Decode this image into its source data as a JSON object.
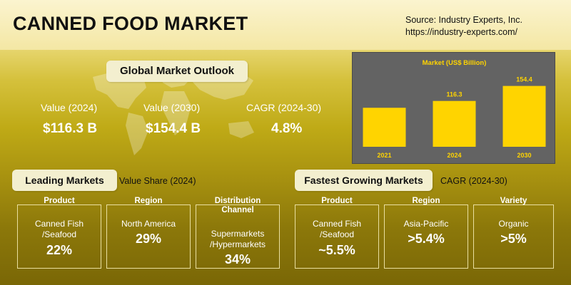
{
  "header": {
    "title": "CANNED FOOD MARKET",
    "source_line1": "Source: Industry Experts, Inc.",
    "source_line2": "https://industry-experts.com/"
  },
  "outlook": {
    "heading": "Global Market Outlook",
    "kpis": [
      {
        "label": "Value (2024)",
        "value": "$116.3 B"
      },
      {
        "label": "Value (2030)",
        "value": "$154.4 B"
      },
      {
        "label": "CAGR (2024-30)",
        "value": "4.8%"
      }
    ]
  },
  "chart_data": {
    "type": "bar",
    "title": "Market (US$ Billion)",
    "categories": [
      "2021",
      "2024",
      "2030"
    ],
    "values": [
      99,
      116.3,
      154.4
    ],
    "data_labels": [
      "",
      "116.3",
      "154.4"
    ],
    "ylim": [
      0,
      170
    ],
    "grid": false,
    "colors": {
      "bar": "#ffd400",
      "background": "#636363",
      "title": "#ffd400",
      "label": "#ffd400"
    }
  },
  "leading": {
    "heading": "Leading Markets",
    "sub": "Value Share (2024)",
    "cards": [
      {
        "head": "Product",
        "line1": "Canned Fish",
        "line2": "/Seafood",
        "value": "22%"
      },
      {
        "head": "Region",
        "line1": "North America",
        "line2": "",
        "value": "29%"
      },
      {
        "head_line1": "Distribution",
        "head_line2": "Channel",
        "line1": "Supermarkets",
        "line2": "/Hypermarkets",
        "value": "34%"
      }
    ]
  },
  "fastest": {
    "heading": "Fastest Growing Markets",
    "sub": "CAGR (2024-30)",
    "cards": [
      {
        "head": "Product",
        "line1": "Canned Fish",
        "line2": "/Seafood",
        "value": "~5.5%"
      },
      {
        "head": "Region",
        "line1": "Asia-Pacific",
        "line2": "",
        "value": ">5.4%"
      },
      {
        "head": "Variety",
        "line1": "Organic",
        "line2": "",
        "value": ">5%"
      }
    ]
  }
}
